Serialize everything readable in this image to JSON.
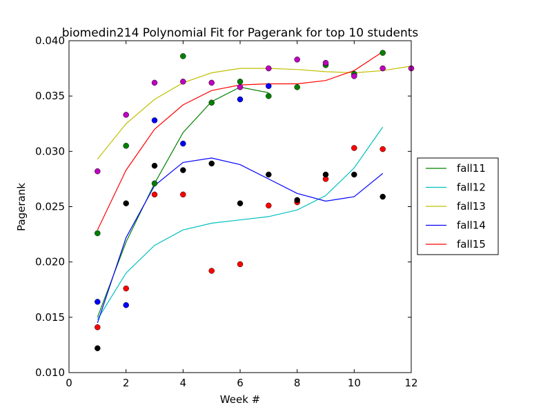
{
  "chart_data": {
    "type": "scatter",
    "title": "biomedin214 Polynomial Fit for Pagerank for top 10 students",
    "xlabel": "Week #",
    "ylabel": "Pagerank",
    "xlim": [
      0,
      12
    ],
    "ylim": [
      0.01,
      0.04
    ],
    "xticks": [
      "0",
      "2",
      "4",
      "6",
      "8",
      "10",
      "12"
    ],
    "yticks": [
      "0.010",
      "0.015",
      "0.020",
      "0.025",
      "0.030",
      "0.035",
      "0.040"
    ],
    "legend_position": "right, outside plot",
    "fit_lines": [
      {
        "name": "fall11",
        "color": "#008000",
        "x": [
          1,
          2,
          3,
          4,
          5,
          6,
          7
        ],
        "y": [
          0.015,
          0.0218,
          0.0271,
          0.0317,
          0.0345,
          0.0358,
          0.0353
        ]
      },
      {
        "name": "fall12",
        "color": "#00bfbf",
        "x": [
          1,
          2,
          3,
          4,
          5,
          6,
          7,
          8,
          9,
          10,
          11
        ],
        "y": [
          0.0148,
          0.019,
          0.0215,
          0.0229,
          0.0235,
          0.0238,
          0.0241,
          0.0247,
          0.026,
          0.0285,
          0.0322
        ]
      },
      {
        "name": "fall13",
        "color": "#bfbf00",
        "x": [
          1,
          2,
          3,
          4,
          5,
          6,
          7,
          8,
          9,
          10,
          11,
          12
        ],
        "y": [
          0.0293,
          0.0325,
          0.0347,
          0.0362,
          0.0371,
          0.0375,
          0.0375,
          0.0374,
          0.0372,
          0.0371,
          0.0373,
          0.0377
        ]
      },
      {
        "name": "fall14",
        "color": "#0000ff",
        "x": [
          1,
          2,
          3,
          4,
          5,
          6,
          7,
          8,
          9,
          10,
          11
        ],
        "y": [
          0.0145,
          0.0222,
          0.0269,
          0.029,
          0.0294,
          0.0288,
          0.0275,
          0.0262,
          0.0255,
          0.0259,
          0.028
        ]
      },
      {
        "name": "fall15",
        "color": "#ff0000",
        "x": [
          1,
          2,
          3,
          4,
          5,
          6,
          7,
          8,
          9,
          10,
          11
        ],
        "y": [
          0.0229,
          0.0283,
          0.032,
          0.0342,
          0.0355,
          0.036,
          0.0361,
          0.0361,
          0.0364,
          0.0373,
          0.039
        ]
      }
    ],
    "point_series": [
      {
        "color": "#008000",
        "x": [
          1,
          2,
          3,
          4,
          5,
          6,
          7,
          8,
          9,
          10,
          11
        ],
        "y": [
          0.0226,
          0.0305,
          0.0271,
          0.0386,
          0.0344,
          0.0363,
          0.035,
          0.0358,
          0.0378,
          0.037,
          0.0389
        ]
      },
      {
        "color": "#bf00bf",
        "x": [
          1,
          2,
          3,
          4,
          5,
          6,
          7,
          8,
          9,
          10,
          11,
          12
        ],
        "y": [
          0.0282,
          0.0333,
          0.0362,
          0.0363,
          0.0362,
          0.0358,
          0.0375,
          0.0383,
          0.038,
          0.0368,
          0.0375,
          0.0375
        ]
      },
      {
        "color": "#0000ff",
        "x": [
          1,
          2,
          3,
          4,
          6,
          7
        ],
        "y": [
          0.0164,
          0.0161,
          0.0328,
          0.0307,
          0.0347,
          0.0359
        ]
      },
      {
        "color": "#ff0000",
        "x": [
          1,
          2,
          3,
          4,
          5,
          6,
          7,
          8,
          9,
          10,
          11
        ],
        "y": [
          0.0141,
          0.0176,
          0.0261,
          0.0261,
          0.0192,
          0.0198,
          0.0251,
          0.0254,
          0.0275,
          0.0303,
          0.0302
        ]
      },
      {
        "color": "#000000",
        "x": [
          1,
          2,
          3,
          4,
          5,
          6,
          7,
          8,
          9,
          10,
          11
        ],
        "y": [
          0.0122,
          0.0253,
          0.0287,
          0.0283,
          0.0289,
          0.0253,
          0.0279,
          0.0256,
          0.0279,
          0.0279,
          0.0259
        ]
      }
    ]
  }
}
